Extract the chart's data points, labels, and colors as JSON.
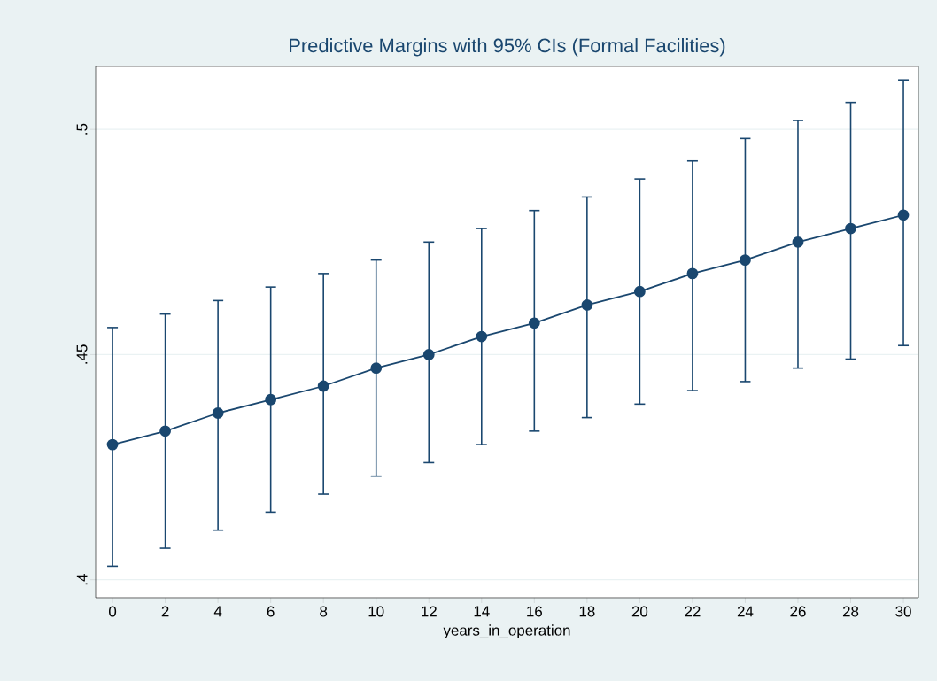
{
  "chart_data": {
    "type": "line",
    "title": "Predictive Margins with 95% CIs (Formal Facilities)",
    "xlabel": "years_in_operation",
    "x": [
      0,
      2,
      4,
      6,
      8,
      10,
      12,
      14,
      16,
      18,
      20,
      22,
      24,
      26,
      28,
      30
    ],
    "series": [
      {
        "color": "#1a476f",
        "values": [
          0.43,
          0.433,
          0.437,
          0.44,
          0.443,
          0.447,
          0.45,
          0.454,
          0.457,
          0.461,
          0.464,
          0.468,
          0.471,
          0.475,
          0.478,
          0.481
        ],
        "errors": [
          [
            0.403,
            0.456
          ],
          [
            0.407,
            0.459
          ],
          [
            0.411,
            0.462
          ],
          [
            0.415,
            0.465
          ],
          [
            0.419,
            0.468
          ],
          [
            0.423,
            0.471
          ],
          [
            0.426,
            0.475
          ],
          [
            0.43,
            0.478
          ],
          [
            0.433,
            0.482
          ],
          [
            0.436,
            0.485
          ],
          [
            0.439,
            0.489
          ],
          [
            0.442,
            0.493
          ],
          [
            0.444,
            0.498
          ],
          [
            0.447,
            0.502
          ],
          [
            0.449,
            0.506
          ],
          [
            0.452,
            0.511
          ]
        ]
      }
    ],
    "xlim": [
      -0.64,
      30.57
    ],
    "ylim": [
      0.396,
      0.514
    ],
    "xticks": [
      0,
      2,
      4,
      6,
      8,
      10,
      12,
      14,
      16,
      18,
      20,
      22,
      24,
      26,
      28,
      30
    ],
    "yticks": [
      {
        "value": 0.4,
        "label": ".4"
      },
      {
        "value": 0.45,
        "label": ".45"
      },
      {
        "value": 0.5,
        "label": ".5"
      }
    ],
    "grid": "y",
    "marker": "circle",
    "line_style": "solid"
  }
}
